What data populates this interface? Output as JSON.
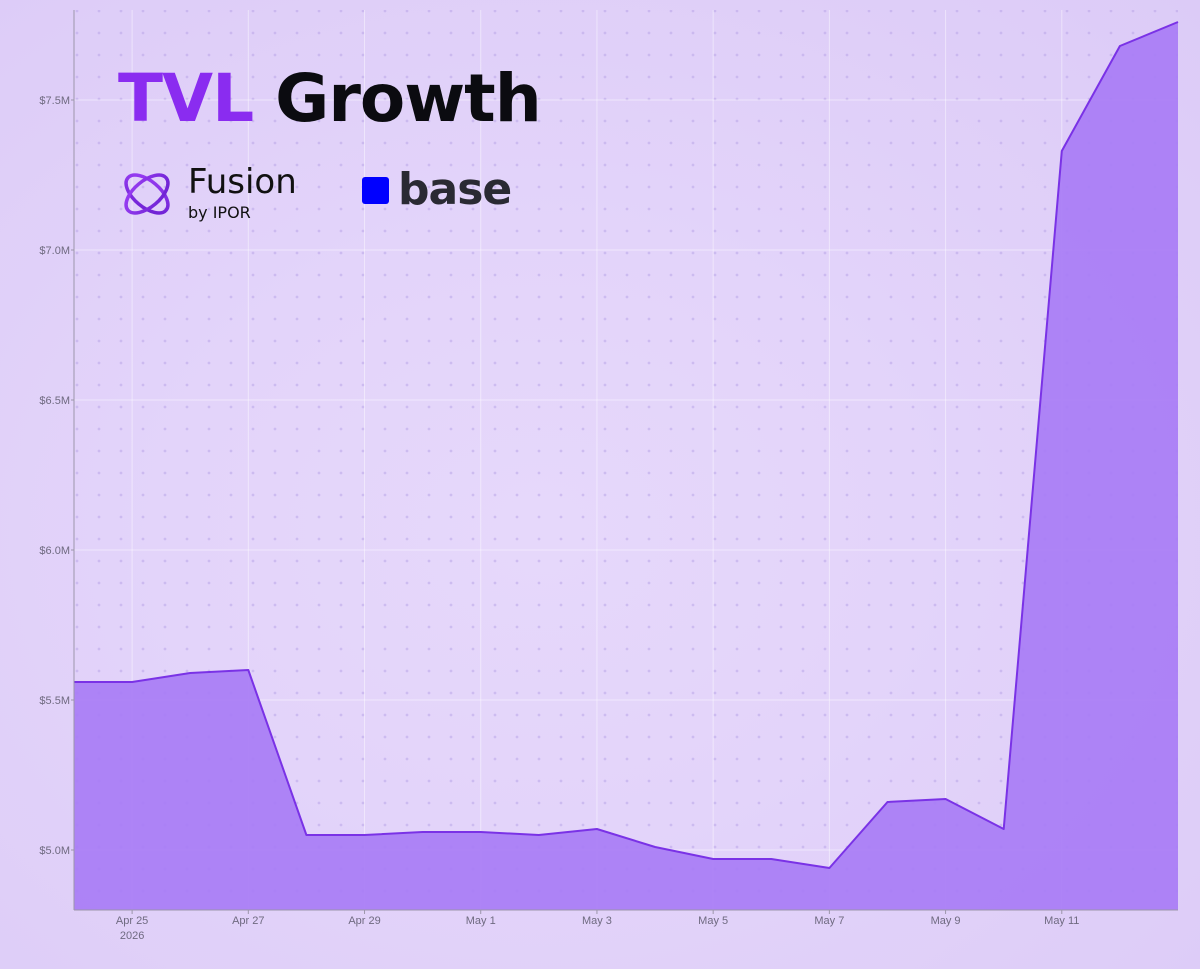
{
  "header": {
    "title_accent": "TVL",
    "title_rest": "Growth",
    "fusion_name": "Fusion",
    "fusion_by": "by IPOR",
    "base_name": "base"
  },
  "colors": {
    "fill": "#a87cf5",
    "line": "#7a32e6",
    "accent": "#8a2cf0",
    "base_blue": "#0000ff"
  },
  "chart_data": {
    "type": "area",
    "title": "TVL Growth",
    "xlabel": "",
    "ylabel": "",
    "x": [
      "2026-04-24",
      "2026-04-25",
      "2026-04-26",
      "2026-04-27",
      "2026-04-28",
      "2026-04-29",
      "2026-04-30",
      "2026-05-01",
      "2026-05-02",
      "2026-05-03",
      "2026-05-04",
      "2026-05-05",
      "2026-05-06",
      "2026-05-07",
      "2026-05-08",
      "2026-05-09",
      "2026-05-10",
      "2026-05-11",
      "2026-05-12",
      "2026-05-13"
    ],
    "values": [
      5.56,
      5.56,
      5.59,
      5.6,
      5.05,
      5.05,
      5.06,
      5.06,
      5.05,
      5.07,
      5.01,
      4.97,
      4.97,
      4.94,
      5.16,
      5.17,
      5.07,
      7.33,
      7.68,
      7.76
    ],
    "y_unit": "$M",
    "ylim": [
      4.8,
      7.8
    ],
    "yticks": [
      5.0,
      5.5,
      6.0,
      6.5,
      7.0,
      7.5
    ],
    "ytick_labels": [
      "$5.0M",
      "$5.5M",
      "$6.0M",
      "$6.5M",
      "$7.0M",
      "$7.5M"
    ],
    "xticks": [
      "2026-04-25",
      "2026-04-27",
      "2026-04-29",
      "2026-05-01",
      "2026-05-03",
      "2026-05-05",
      "2026-05-07",
      "2026-05-09",
      "2026-05-11"
    ],
    "xtick_labels": [
      "Apr 25",
      "Apr 27",
      "Apr 29",
      "May 1",
      "May 3",
      "May 5",
      "May 7",
      "May 9",
      "May 11"
    ],
    "xtick_sublabel": "2026",
    "grid": true,
    "legend": "none"
  }
}
